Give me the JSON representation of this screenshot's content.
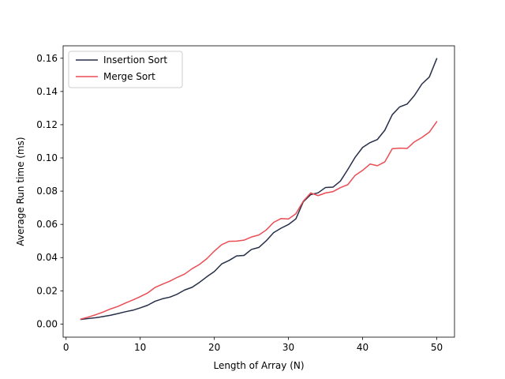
{
  "chart_data": {
    "type": "line",
    "title": "",
    "xlabel": "Length of Array (N)",
    "ylabel": "Average Run time (ms)",
    "xlim": [
      -0.4,
      52.4
    ],
    "ylim": [
      -0.0079,
      0.1675
    ],
    "xticks": [
      0,
      10,
      20,
      30,
      40,
      50
    ],
    "xtick_labels": [
      "0",
      "10",
      "20",
      "30",
      "40",
      "50"
    ],
    "yticks": [
      0.0,
      0.02,
      0.04,
      0.06,
      0.08,
      0.1,
      0.12,
      0.14,
      0.16
    ],
    "ytick_labels": [
      "0.00",
      "0.02",
      "0.04",
      "0.06",
      "0.08",
      "0.10",
      "0.12",
      "0.14",
      "0.16"
    ],
    "grid": false,
    "legend_position": "upper-left",
    "x": [
      2,
      3,
      4,
      5,
      6,
      7,
      8,
      9,
      10,
      11,
      12,
      13,
      14,
      15,
      16,
      17,
      18,
      19,
      20,
      21,
      22,
      23,
      24,
      25,
      26,
      27,
      28,
      29,
      30,
      31,
      32,
      33,
      34,
      35,
      36,
      37,
      38,
      39,
      40,
      41,
      42,
      43,
      44,
      45,
      46,
      47,
      48,
      49,
      50
    ],
    "series": [
      {
        "name": "Insertion Sort",
        "color": "#262e48",
        "values": [
          0.0028,
          0.0033,
          0.0038,
          0.0045,
          0.0053,
          0.0063,
          0.0074,
          0.0083,
          0.0097,
          0.0113,
          0.0137,
          0.0152,
          0.0162,
          0.018,
          0.0205,
          0.0221,
          0.0251,
          0.0285,
          0.0316,
          0.0362,
          0.0383,
          0.041,
          0.0413,
          0.0449,
          0.0461,
          0.0501,
          0.055,
          0.0577,
          0.0599,
          0.0633,
          0.0736,
          0.0779,
          0.079,
          0.0822,
          0.0824,
          0.086,
          0.093,
          0.1004,
          0.1063,
          0.1092,
          0.1111,
          0.1167,
          0.126,
          0.1307,
          0.1324,
          0.1376,
          0.1445,
          0.1487,
          0.1597
        ]
      },
      {
        "name": "Merge Sort",
        "color": "#ea4d55",
        "values": [
          0.003,
          0.0042,
          0.0056,
          0.0072,
          0.0091,
          0.0106,
          0.0126,
          0.0145,
          0.0165,
          0.0187,
          0.022,
          0.024,
          0.0258,
          0.0281,
          0.0301,
          0.0333,
          0.0359,
          0.0394,
          0.0439,
          0.0478,
          0.0498,
          0.0499,
          0.0505,
          0.0524,
          0.0536,
          0.0566,
          0.0612,
          0.0635,
          0.0632,
          0.0664,
          0.074,
          0.0789,
          0.0773,
          0.0789,
          0.0797,
          0.0821,
          0.0839,
          0.0895,
          0.0925,
          0.0963,
          0.0953,
          0.0976,
          0.1055,
          0.1059,
          0.1057,
          0.1097,
          0.1123,
          0.1155,
          0.1218
        ]
      }
    ]
  }
}
